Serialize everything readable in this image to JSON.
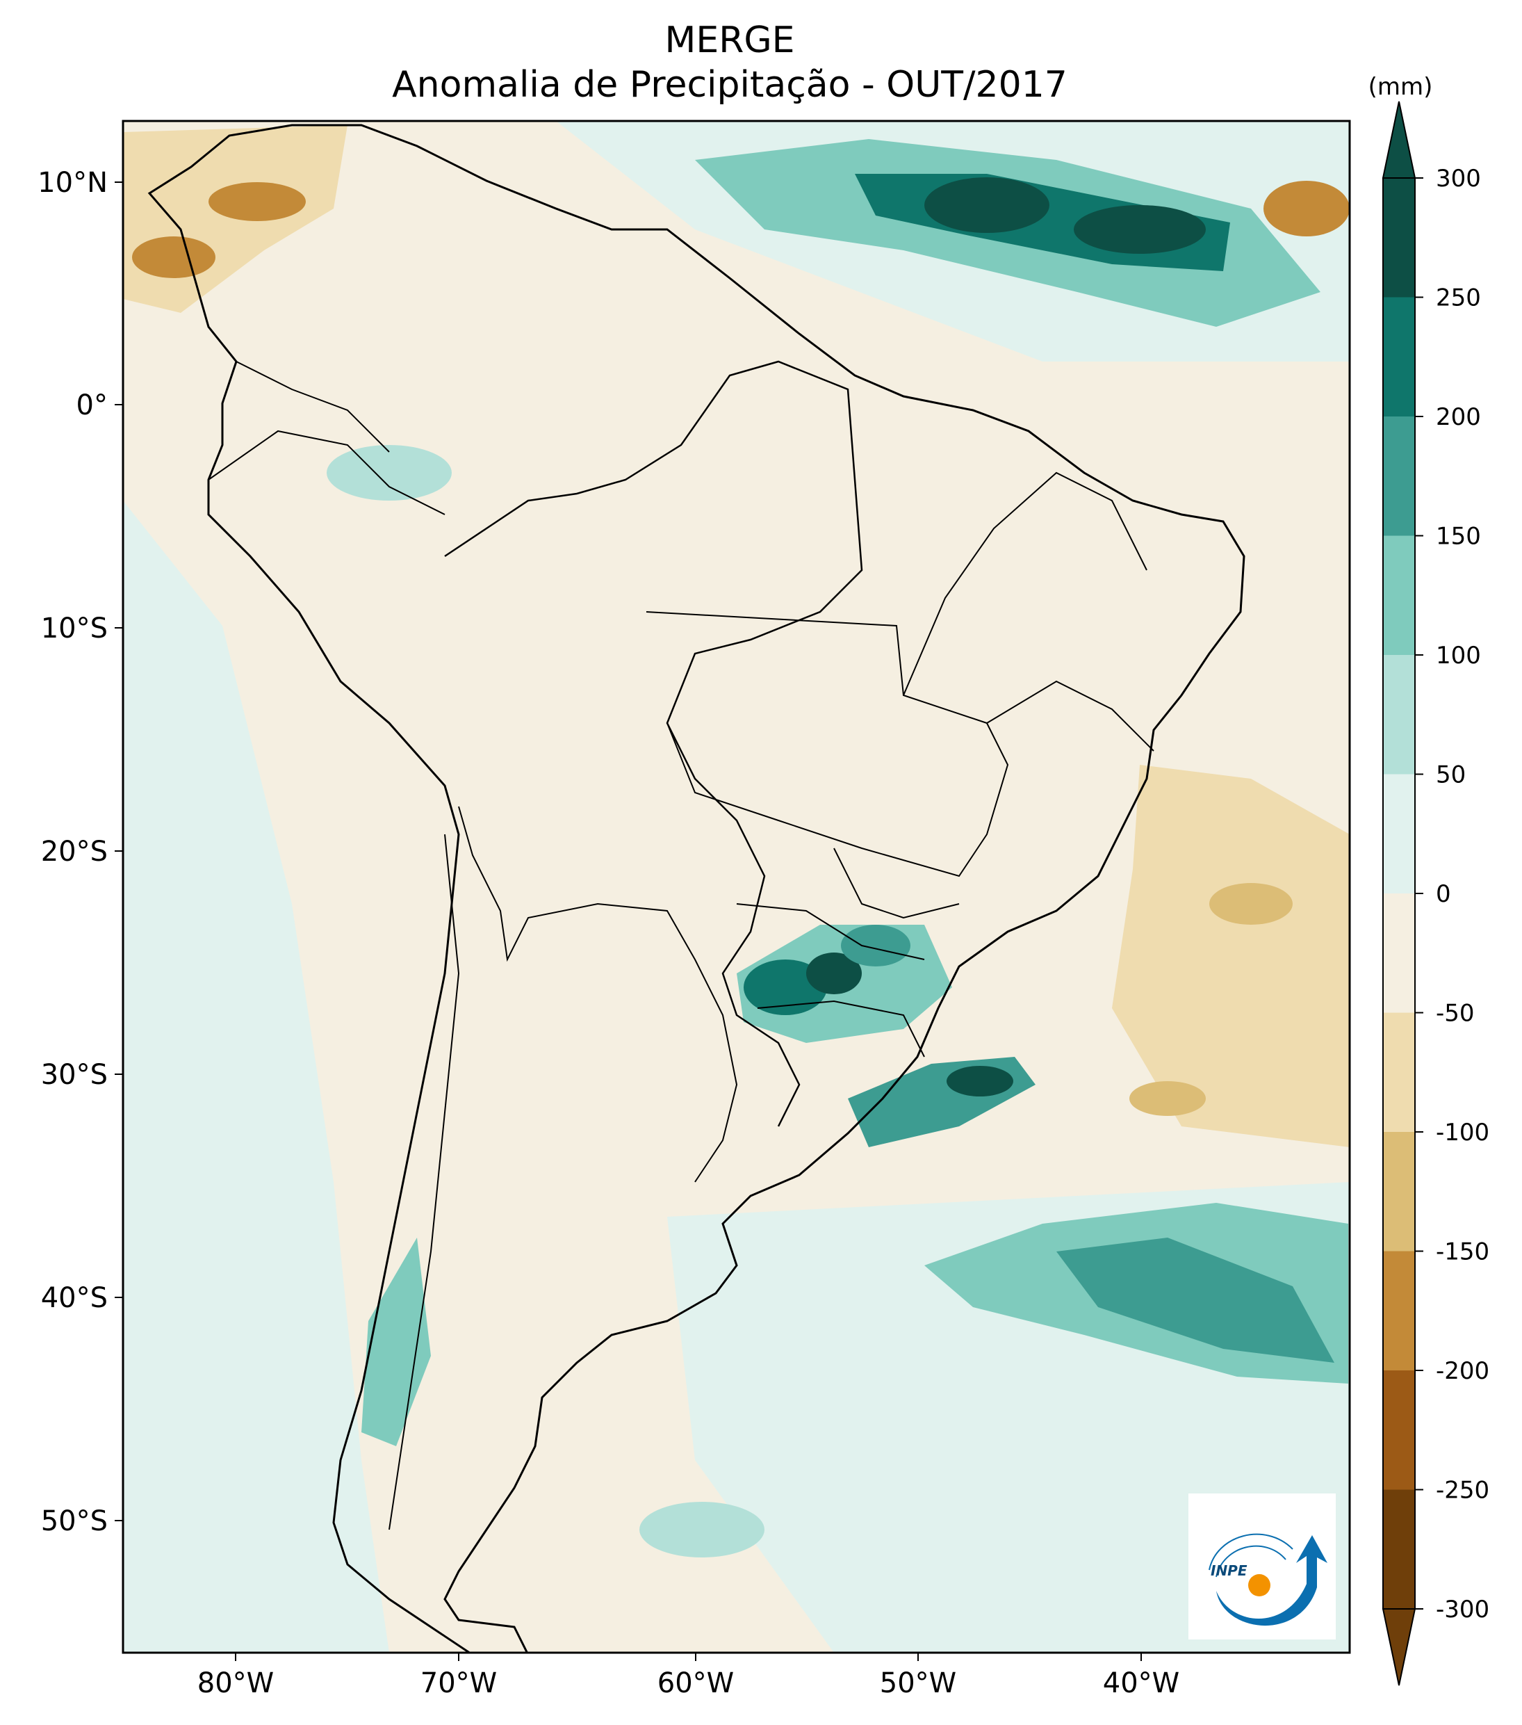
{
  "title": "MERGE",
  "subtitle": "Anomalia de Precipitação - OUT/2017",
  "colorbar": {
    "unit": "(mm)",
    "ticks": [
      "300",
      "250",
      "200",
      "150",
      "100",
      "50",
      "0",
      "-50",
      "-100",
      "-150",
      "-200",
      "-250",
      "-300"
    ],
    "colors": [
      "#0d4f45",
      "#0f766b",
      "#3d9c91",
      "#7fcbbd",
      "#b3e0d8",
      "#e1f2ee",
      "#f5efe1",
      "#efdcaf",
      "#dcbd76",
      "#c38a38",
      "#9c5a16",
      "#6f3f0a"
    ]
  },
  "axes": {
    "lon_ticks": [
      "80°W",
      "70°W",
      "60°W",
      "50°W",
      "40°W"
    ],
    "lat_ticks": [
      "10°N",
      "0°",
      "10°S",
      "20°S",
      "30°S",
      "40°S",
      "50°S"
    ]
  },
  "logo": {
    "text": "INPE",
    "primary": "#0b6fb0",
    "accent": "#f39200"
  }
}
